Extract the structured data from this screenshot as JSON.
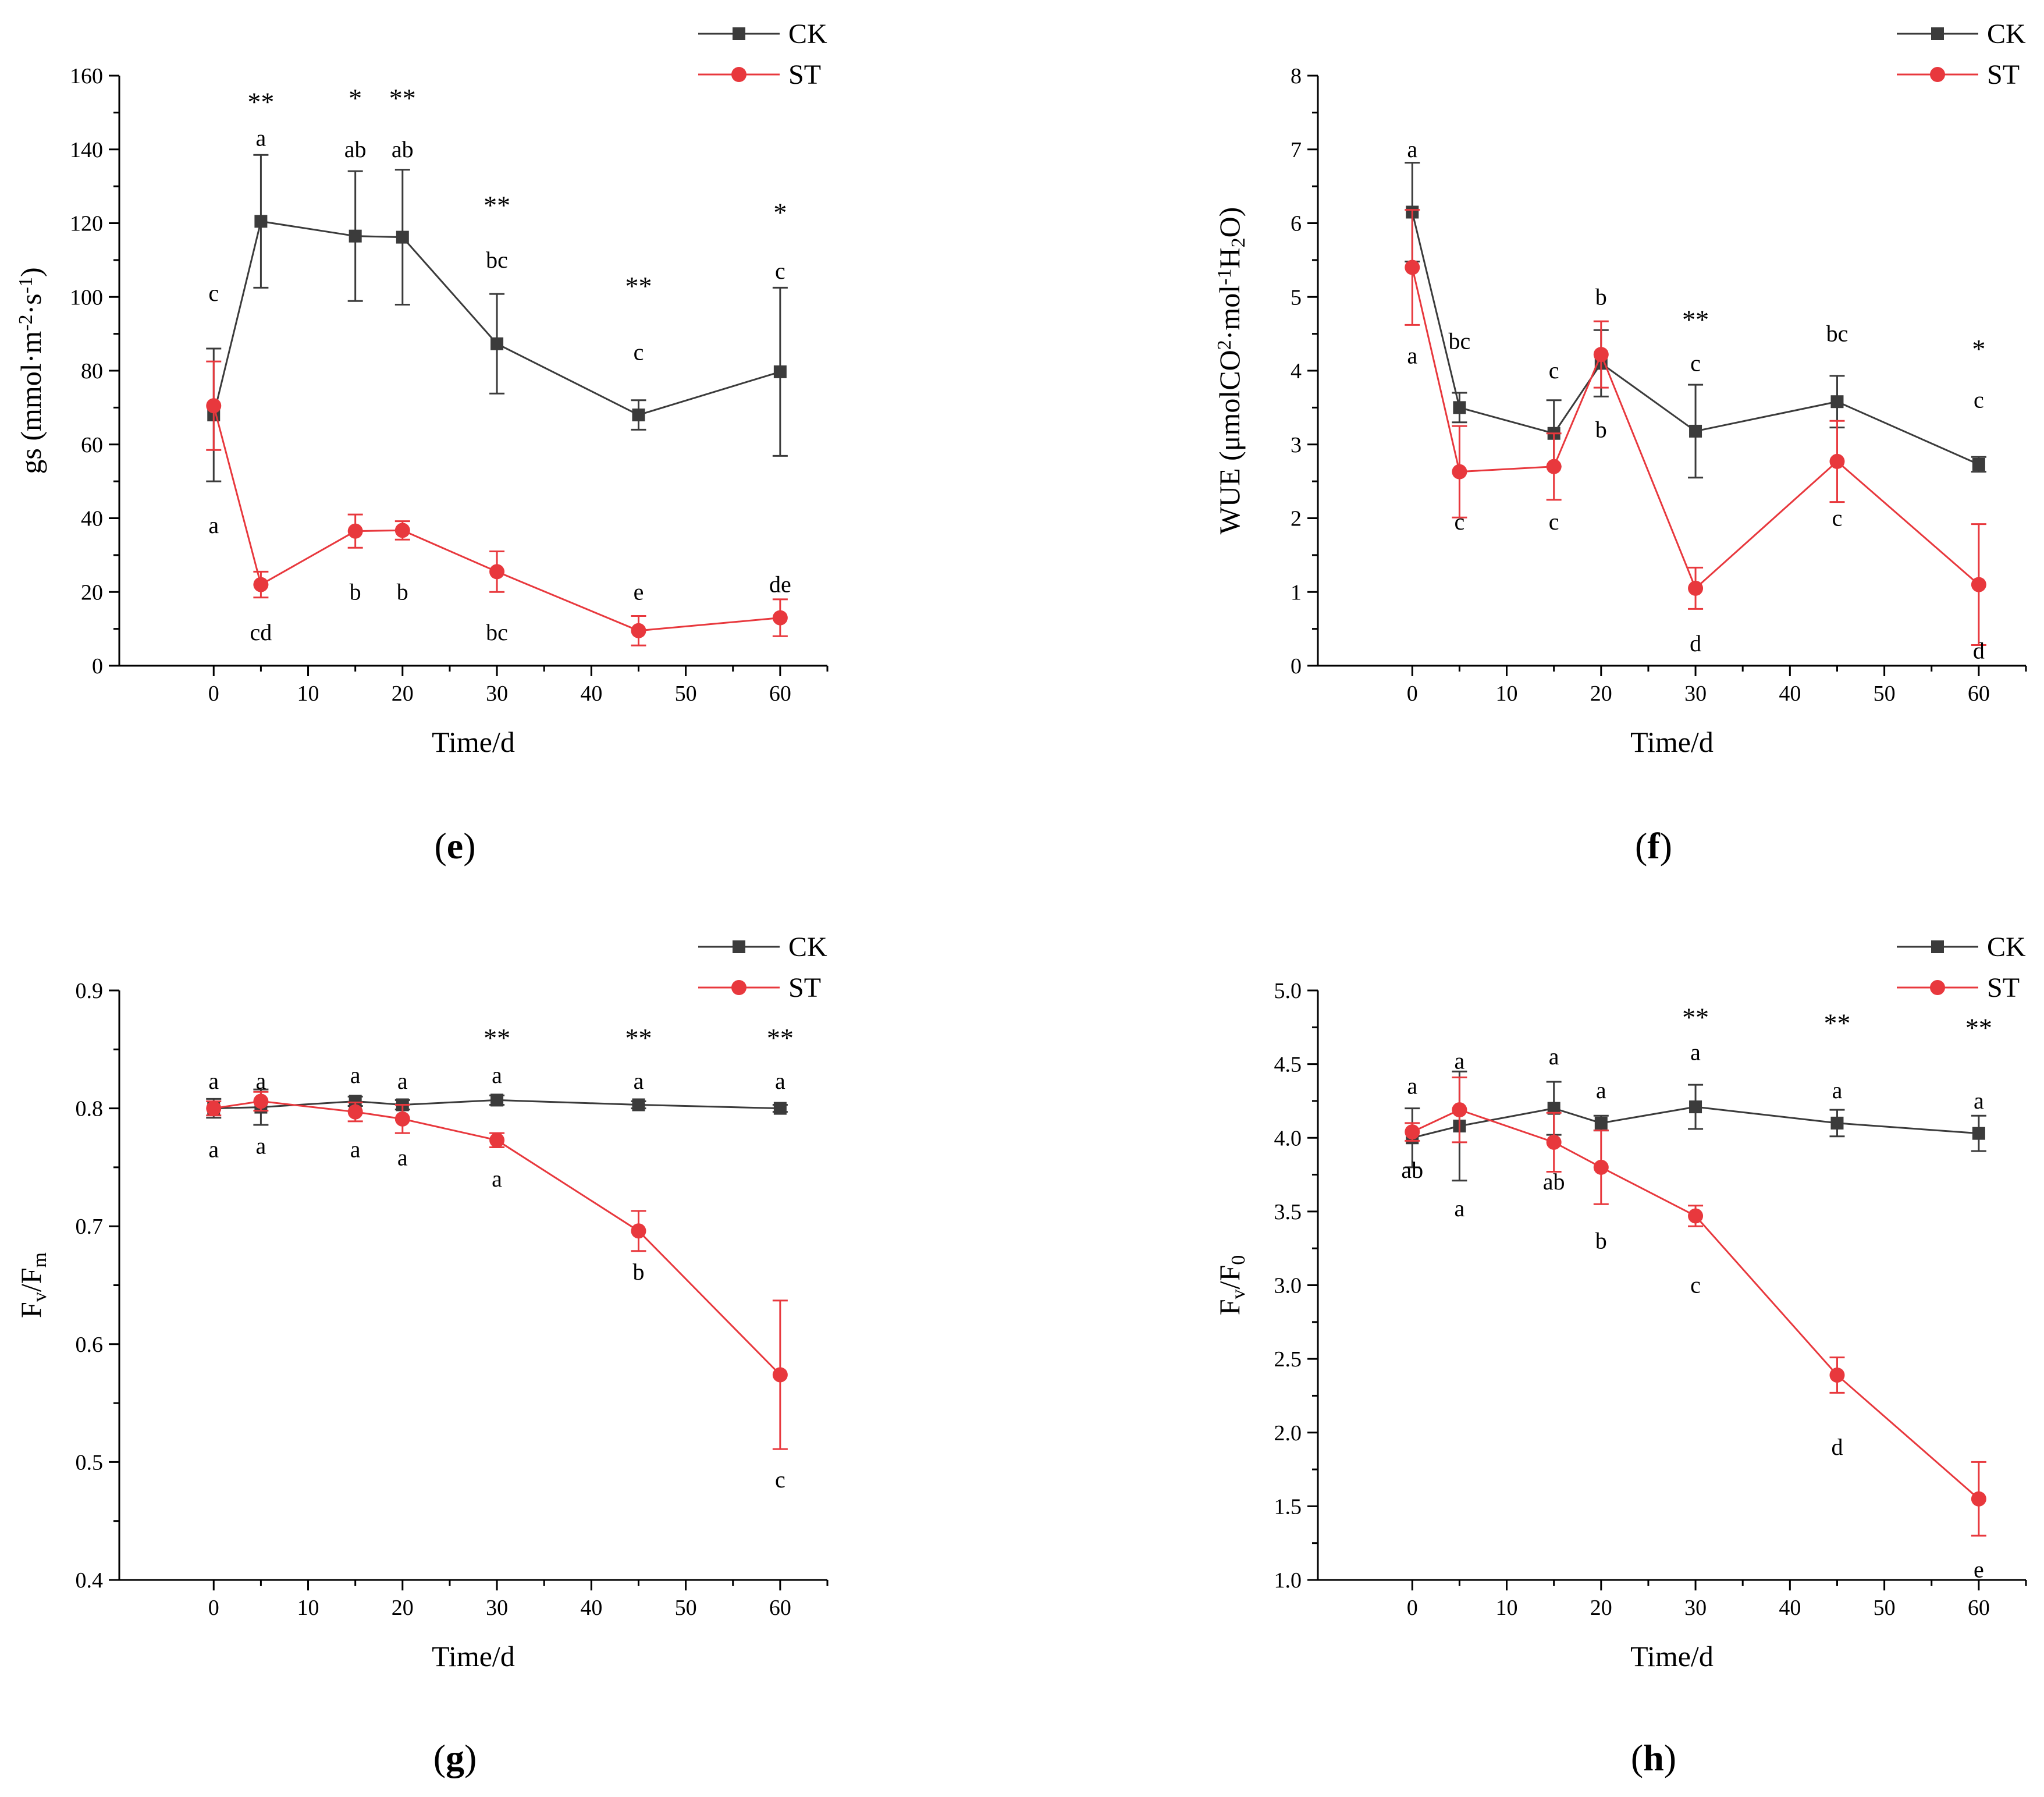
{
  "colors": {
    "CK": "#3b3b3b",
    "ST": "#e8383d",
    "axis": "#000000"
  },
  "chart_data": [
    {
      "panel": "e",
      "panel_label": "(e)",
      "type": "line",
      "ylabel_parts": [
        {
          "t": "gs (mmol·m"
        },
        {
          "t": "-2",
          "s": "sup"
        },
        {
          "t": "·s"
        },
        {
          "t": "-1",
          "s": "sup"
        },
        {
          "t": ")"
        }
      ],
      "xlabel": "Time/d",
      "xlim": [
        -10,
        65
      ],
      "ylim": [
        0,
        160
      ],
      "xticks": [
        0,
        10,
        20,
        30,
        40,
        50,
        60
      ],
      "yticks": [
        0,
        20,
        40,
        60,
        80,
        100,
        120,
        140,
        160
      ],
      "ytick_labels": [
        "0",
        "20",
        "40",
        "60",
        "80",
        "100",
        "120",
        "140",
        "160"
      ],
      "legend": [
        "CK",
        "ST"
      ],
      "x": [
        0,
        5,
        15,
        20,
        30,
        45,
        60
      ],
      "series": [
        {
          "name": "CK",
          "y": [
            68,
            120.5,
            116.5,
            116.2,
            87.3,
            68,
            79.7
          ],
          "err": [
            18,
            18,
            17.6,
            18.3,
            13.5,
            4,
            22.8
          ],
          "letters": [
            "c",
            "a",
            "ab",
            "ab",
            "bc",
            "c",
            "c"
          ],
          "letter_y": [
            101,
            143,
            140,
            140,
            110,
            85,
            107
          ]
        },
        {
          "name": "ST",
          "y": [
            70.5,
            22,
            36.5,
            36.7,
            25.5,
            9.5,
            13
          ],
          "err": [
            12,
            3.5,
            4.5,
            2.5,
            5.5,
            4,
            5
          ],
          "letters": [
            "a",
            "cd",
            "b",
            "b",
            "bc",
            "e",
            "de"
          ],
          "letter_y": [
            38,
            9,
            20,
            20,
            9,
            20,
            22
          ]
        }
      ],
      "significance": [
        "",
        "**",
        "*",
        "**",
        "**",
        "**",
        "*"
      ],
      "sig_y": [
        0,
        153,
        154,
        154,
        125,
        103,
        123
      ]
    },
    {
      "panel": "f",
      "panel_label": "(f)",
      "type": "line",
      "ylabel_parts": [
        {
          "t": "WUE (μmolCO"
        },
        {
          "t": "2",
          "s": "sup"
        },
        {
          "t": "·mol"
        },
        {
          "t": "-1",
          "s": "sup"
        },
        {
          "t": "H"
        },
        {
          "t": "2",
          "s": "sub"
        },
        {
          "t": "O)"
        }
      ],
      "xlabel": "Time/d",
      "xlim": [
        -10,
        65
      ],
      "ylim": [
        0,
        8
      ],
      "xticks": [
        0,
        10,
        20,
        30,
        40,
        50,
        60
      ],
      "yticks": [
        0,
        1,
        2,
        3,
        4,
        5,
        6,
        7,
        8
      ],
      "ytick_labels": [
        "0",
        "1",
        "2",
        "3",
        "4",
        "5",
        "6",
        "7",
        "8"
      ],
      "legend": [
        "CK",
        "ST"
      ],
      "x": [
        0,
        5,
        15,
        20,
        30,
        45,
        60
      ],
      "series": [
        {
          "name": "CK",
          "y": [
            6.15,
            3.5,
            3.15,
            4.1,
            3.18,
            3.58,
            2.73
          ],
          "err": [
            0.67,
            0.2,
            0.45,
            0.45,
            0.63,
            0.35,
            0.1
          ],
          "letters": [
            "a",
            "bc",
            "c",
            "b",
            "c",
            "bc",
            "c"
          ],
          "letter_y": [
            7.0,
            4.4,
            4.0,
            5.0,
            4.1,
            4.5,
            3.6
          ]
        },
        {
          "name": "ST",
          "y": [
            5.4,
            2.63,
            2.7,
            4.22,
            1.05,
            2.77,
            1.1
          ],
          "err": [
            0.78,
            0.62,
            0.45,
            0.45,
            0.28,
            0.55,
            0.82
          ],
          "letters": [
            "a",
            "c",
            "c",
            "b",
            "d",
            "c",
            "d"
          ],
          "letter_y": [
            4.2,
            1.95,
            1.95,
            3.2,
            0.3,
            2.0,
            0.2
          ]
        }
      ],
      "significance": [
        "",
        "",
        "",
        "",
        "**",
        "",
        "*"
      ],
      "sig_y": [
        0,
        0,
        0,
        0,
        4.7,
        0,
        4.3
      ]
    },
    {
      "panel": "g",
      "panel_label": "(g)",
      "type": "line",
      "ylabel_parts": [
        {
          "t": "F"
        },
        {
          "t": "v",
          "s": "sub"
        },
        {
          "t": "/F"
        },
        {
          "t": "m",
          "s": "sub"
        }
      ],
      "xlabel": "Time/d",
      "xlim": [
        -10,
        65
      ],
      "ylim": [
        0.4,
        0.9
      ],
      "xticks": [
        0,
        10,
        20,
        30,
        40,
        50,
        60
      ],
      "yticks": [
        0.4,
        0.5,
        0.6,
        0.7,
        0.8,
        0.9
      ],
      "ytick_labels": [
        "0.4",
        "0.5",
        "0.6",
        "0.7",
        "0.8",
        "0.9"
      ],
      "legend": [
        "CK",
        "ST"
      ],
      "x": [
        0,
        5,
        15,
        20,
        30,
        45,
        60
      ],
      "series": [
        {
          "name": "CK",
          "y": [
            0.8,
            0.801,
            0.806,
            0.803,
            0.807,
            0.803,
            0.8
          ],
          "err": [
            0.008,
            0.015,
            0.004,
            0.004,
            0.004,
            0.003,
            0.003
          ],
          "letters": [
            "a",
            "a",
            "a",
            "a",
            "a",
            "a",
            "a"
          ],
          "letter_y": [
            0.823,
            0.823,
            0.828,
            0.823,
            0.828,
            0.823,
            0.823
          ]
        },
        {
          "name": "ST",
          "y": [
            0.8,
            0.806,
            0.797,
            0.791,
            0.773,
            0.696,
            0.574
          ],
          "err": [
            0.006,
            0.008,
            0.008,
            0.012,
            0.006,
            0.017,
            0.063
          ],
          "letters": [
            "a",
            "a",
            "a",
            "a",
            "a",
            "b",
            "c"
          ],
          "letter_y": [
            0.765,
            0.768,
            0.765,
            0.758,
            0.74,
            0.661,
            0.485
          ]
        }
      ],
      "significance": [
        "",
        "",
        "",
        "",
        "**",
        "**",
        "**"
      ],
      "sig_y": [
        0,
        0,
        0,
        0,
        0.86,
        0.86,
        0.86
      ]
    },
    {
      "panel": "h",
      "panel_label": "(h)",
      "type": "line",
      "ylabel_parts": [
        {
          "t": "F"
        },
        {
          "t": "v",
          "s": "sub"
        },
        {
          "t": "/F"
        },
        {
          "t": "0",
          "s": "sub"
        }
      ],
      "xlabel": "Time/d",
      "xlim": [
        -10,
        65
      ],
      "ylim": [
        1.0,
        5.0
      ],
      "xticks": [
        0,
        10,
        20,
        30,
        40,
        50,
        60
      ],
      "yticks": [
        1.0,
        1.5,
        2.0,
        2.5,
        3.0,
        3.5,
        4.0,
        4.5,
        5.0
      ],
      "ytick_labels": [
        "1.0",
        "1.5",
        "2.0",
        "2.5",
        "3.0",
        "3.5",
        "4.0",
        "4.5",
        "5.0"
      ],
      "legend": [
        "CK",
        "ST"
      ],
      "x": [
        0,
        5,
        15,
        20,
        30,
        45,
        60
      ],
      "series": [
        {
          "name": "CK",
          "y": [
            4.0,
            4.08,
            4.2,
            4.1,
            4.21,
            4.1,
            4.03
          ],
          "err": [
            0.2,
            0.37,
            0.18,
            0.05,
            0.15,
            0.09,
            0.12
          ],
          "letters": [
            "a",
            "a",
            "a",
            "a",
            "a",
            "a",
            "a"
          ],
          "letter_y": [
            4.35,
            4.52,
            4.55,
            4.32,
            4.58,
            4.32,
            4.25
          ]
        },
        {
          "name": "ST",
          "y": [
            4.04,
            4.19,
            3.97,
            3.8,
            3.47,
            2.39,
            1.55
          ],
          "err": [
            0.06,
            0.22,
            0.2,
            0.25,
            0.07,
            0.12,
            0.25
          ],
          "letters": [
            "ab",
            "a",
            "ab",
            "b",
            "c",
            "d",
            "e"
          ],
          "letter_y": [
            3.78,
            3.52,
            3.7,
            3.3,
            3.0,
            1.9,
            1.07
          ]
        }
      ],
      "significance": [
        "",
        "",
        "",
        "",
        "**",
        "**",
        "**"
      ],
      "sig_y": [
        0,
        0,
        0,
        0,
        4.82,
        4.78,
        4.75
      ]
    }
  ]
}
